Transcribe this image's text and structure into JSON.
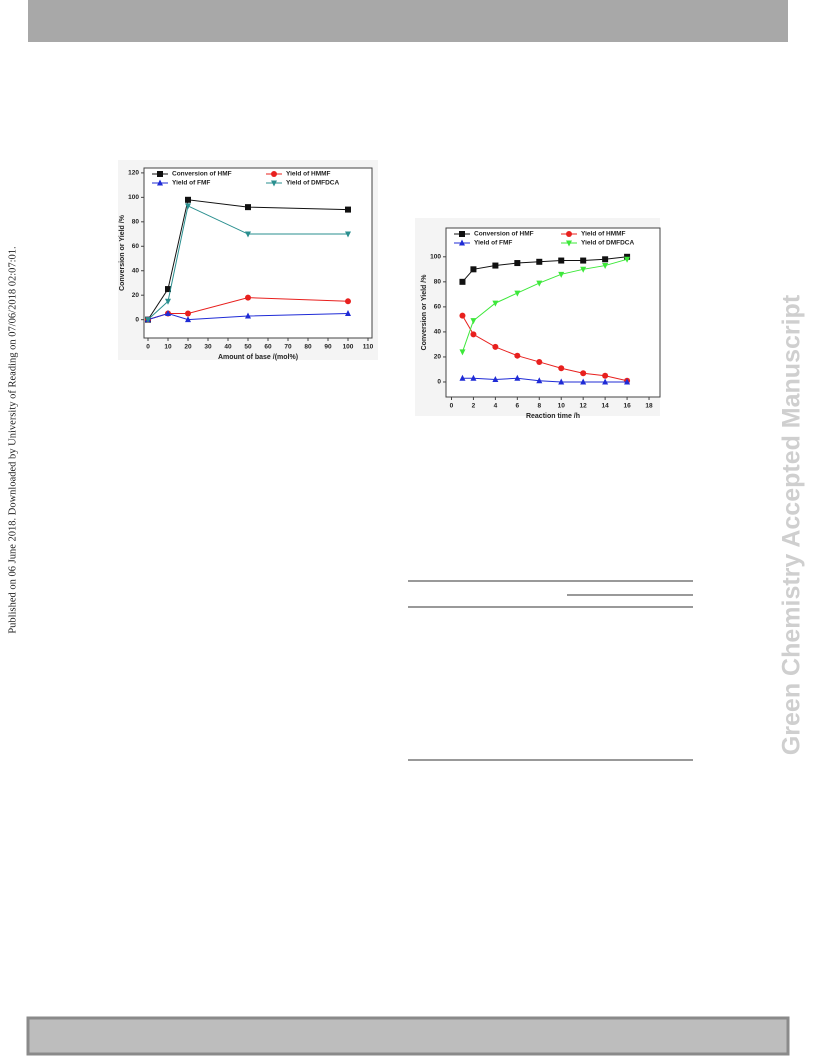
{
  "side_note": "Published on 06 June 2018. Downloaded by University of Reading on 07/06/2018 02:07:01.",
  "watermark": "Green Chemistry Accepted Manuscript",
  "chart_data": [
    {
      "type": "line",
      "xlabel": "Amount of base /(mol%)",
      "ylabel": "Conversion or Yield /%",
      "x": [
        0,
        10,
        20,
        50,
        100
      ],
      "xlim": [
        -2,
        112
      ],
      "ylim": [
        -15,
        124
      ],
      "xticks": [
        0,
        10,
        20,
        30,
        40,
        50,
        60,
        70,
        80,
        90,
        100,
        110
      ],
      "yticks": [
        0,
        20,
        40,
        60,
        80,
        100,
        120
      ],
      "legend": "top",
      "series": [
        {
          "name": "Conversion of HMF",
          "color": "#111111",
          "marker": "square",
          "values": [
            0,
            25,
            98,
            92,
            90
          ]
        },
        {
          "name": "Yield of HMMF",
          "color": "#e8201e",
          "marker": "circle",
          "values": [
            0,
            5,
            5,
            18,
            15
          ]
        },
        {
          "name": "Yield of FMF",
          "color": "#1f2bd6",
          "marker": "triangle-up",
          "values": [
            0,
            5,
            0,
            3,
            5
          ]
        },
        {
          "name": "Yield of DMFDCA",
          "color": "#2a8f8f",
          "marker": "triangle-down",
          "values": [
            0,
            15,
            93,
            70,
            70
          ]
        }
      ]
    },
    {
      "type": "line",
      "xlabel": "Reaction time /h",
      "ylabel": "Conversion or Yield /%",
      "x": [
        1,
        2,
        4,
        6,
        8,
        10,
        12,
        14,
        16
      ],
      "xlim": [
        -0.5,
        19
      ],
      "ylim": [
        -12,
        123
      ],
      "xticks": [
        0,
        2,
        4,
        6,
        8,
        10,
        12,
        14,
        16,
        18
      ],
      "yticks": [
        0,
        20,
        40,
        60,
        80,
        100
      ],
      "legend": "top",
      "series": [
        {
          "name": "Conversion of HMF",
          "color": "#111111",
          "marker": "square",
          "values": [
            80,
            90,
            93,
            95,
            96,
            97,
            97,
            98,
            100
          ]
        },
        {
          "name": "Yield of HMMF",
          "color": "#e8201e",
          "marker": "circle",
          "values": [
            53,
            38,
            28,
            21,
            16,
            11,
            7,
            5,
            1
          ]
        },
        {
          "name": "Yield of FMF",
          "color": "#1f2bd6",
          "marker": "triangle-up",
          "values": [
            3,
            3,
            2,
            3,
            1,
            0,
            0,
            0,
            0
          ]
        },
        {
          "name": "Yield of DMFDCA",
          "color": "#3de83a",
          "marker": "triangle-down",
          "values": [
            24,
            49,
            63,
            71,
            79,
            86,
            90,
            93,
            98
          ]
        }
      ]
    }
  ]
}
